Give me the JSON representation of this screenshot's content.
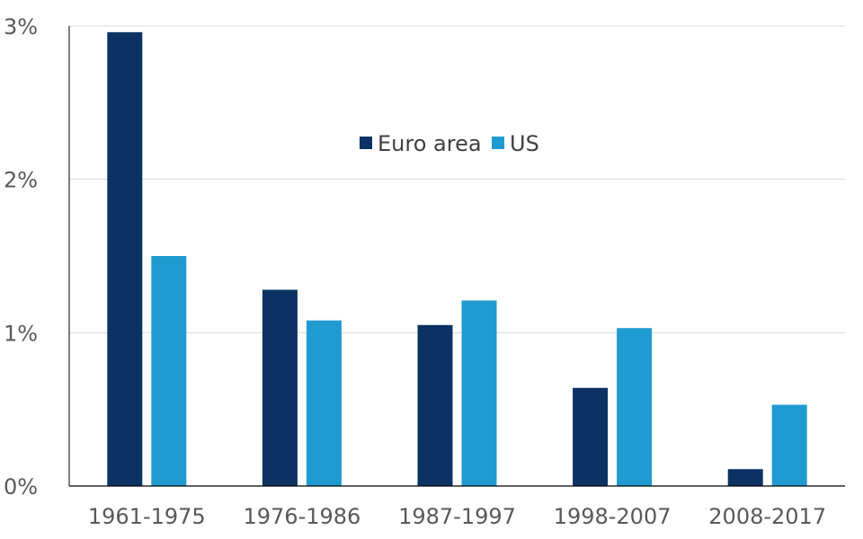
{
  "chart_data": {
    "type": "bar",
    "title": "",
    "xlabel": "",
    "ylabel": "",
    "categories": [
      "1961-1975",
      "1976-1986",
      "1987-1997",
      "1998-2007",
      "2008-2017"
    ],
    "series": [
      {
        "name": "Euro area",
        "color": "#0c3263",
        "values": [
          2.96,
          1.28,
          1.05,
          0.64,
          0.11
        ]
      },
      {
        "name": "US",
        "color": "#1f9bd1",
        "values": [
          1.5,
          1.08,
          1.21,
          1.03,
          0.53
        ]
      }
    ],
    "ylim": [
      0,
      3
    ],
    "yticks": [
      0,
      1,
      2,
      3
    ],
    "ytick_labels": [
      "0%",
      "1%",
      "2%",
      "3%"
    ],
    "grid": true,
    "legend_position": "top-center",
    "gridline_color": "#d9d9d9",
    "axis_color": "#000000"
  }
}
